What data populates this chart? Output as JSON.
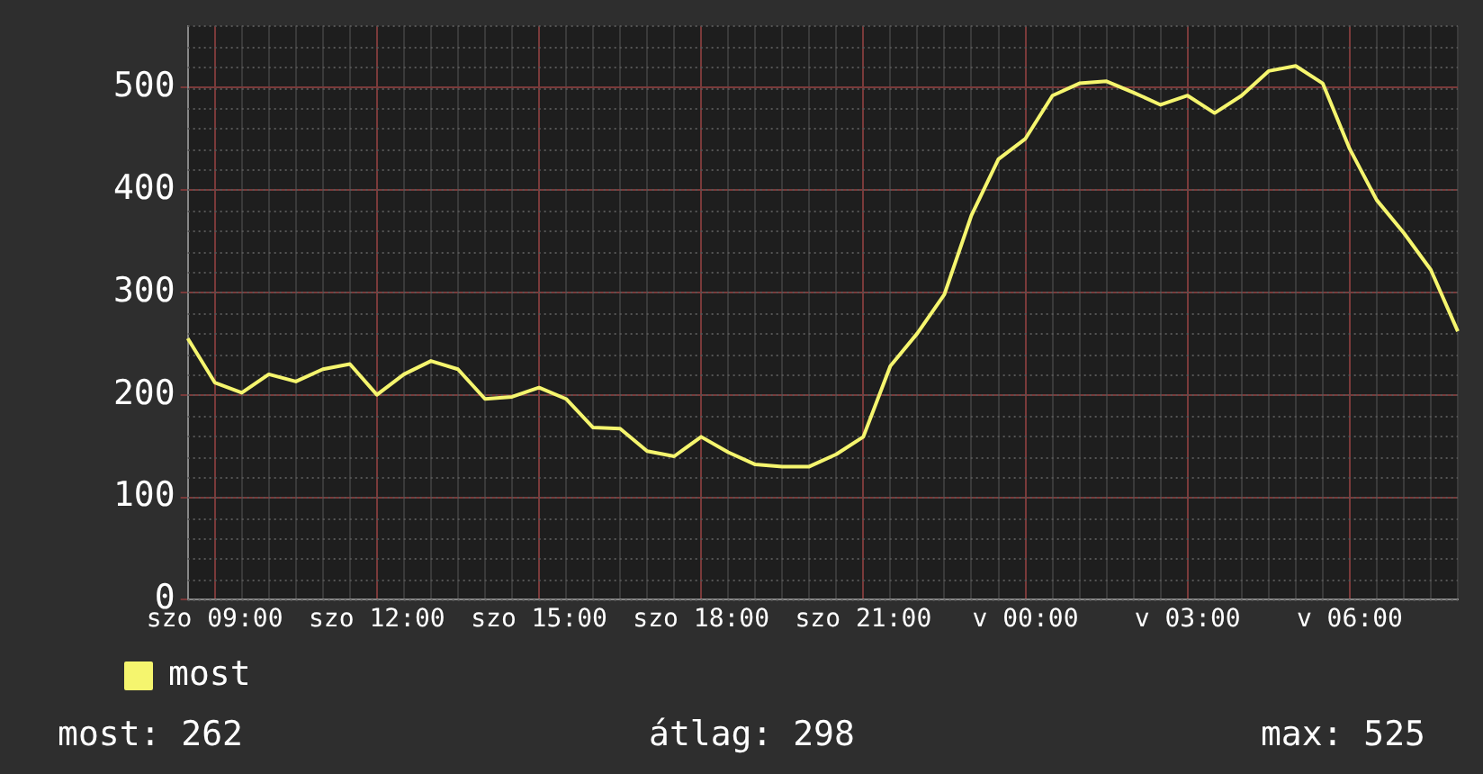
{
  "chart_data": {
    "type": "line",
    "categories": [
      null,
      "szo 09:00",
      null,
      null,
      null,
      null,
      null,
      "szo 12:00",
      null,
      null,
      null,
      null,
      null,
      "szo 15:00",
      null,
      null,
      null,
      null,
      null,
      "szo 18:00",
      null,
      null,
      null,
      null,
      null,
      "szo 21:00",
      null,
      null,
      null,
      null,
      null,
      "v 00:00",
      null,
      null,
      null,
      null,
      null,
      "v 03:00",
      null,
      null,
      null,
      null,
      null,
      "v 06:00",
      null,
      null,
      null,
      null
    ],
    "series": [
      {
        "name": "most",
        "color": "#f5f56e",
        "values": [
          255,
          212,
          202,
          220,
          213,
          225,
          230,
          200,
          220,
          233,
          225,
          196,
          198,
          207,
          196,
          168,
          167,
          145,
          140,
          159,
          144,
          132,
          130,
          130,
          142,
          159,
          228,
          260,
          298,
          375,
          430,
          450,
          492,
          504,
          506,
          495,
          483,
          492,
          475,
          492,
          516,
          521,
          504,
          440,
          390,
          358,
          322,
          262
        ]
      }
    ],
    "ylim": [
      0,
      560
    ],
    "yticks": [
      0,
      100,
      200,
      300,
      400,
      500
    ],
    "grid": true,
    "legend": "bottom left",
    "marker": "none",
    "line_style": "solid",
    "annotations": [
      "most: 262",
      "átlag: 298",
      "max: 525"
    ]
  }
}
